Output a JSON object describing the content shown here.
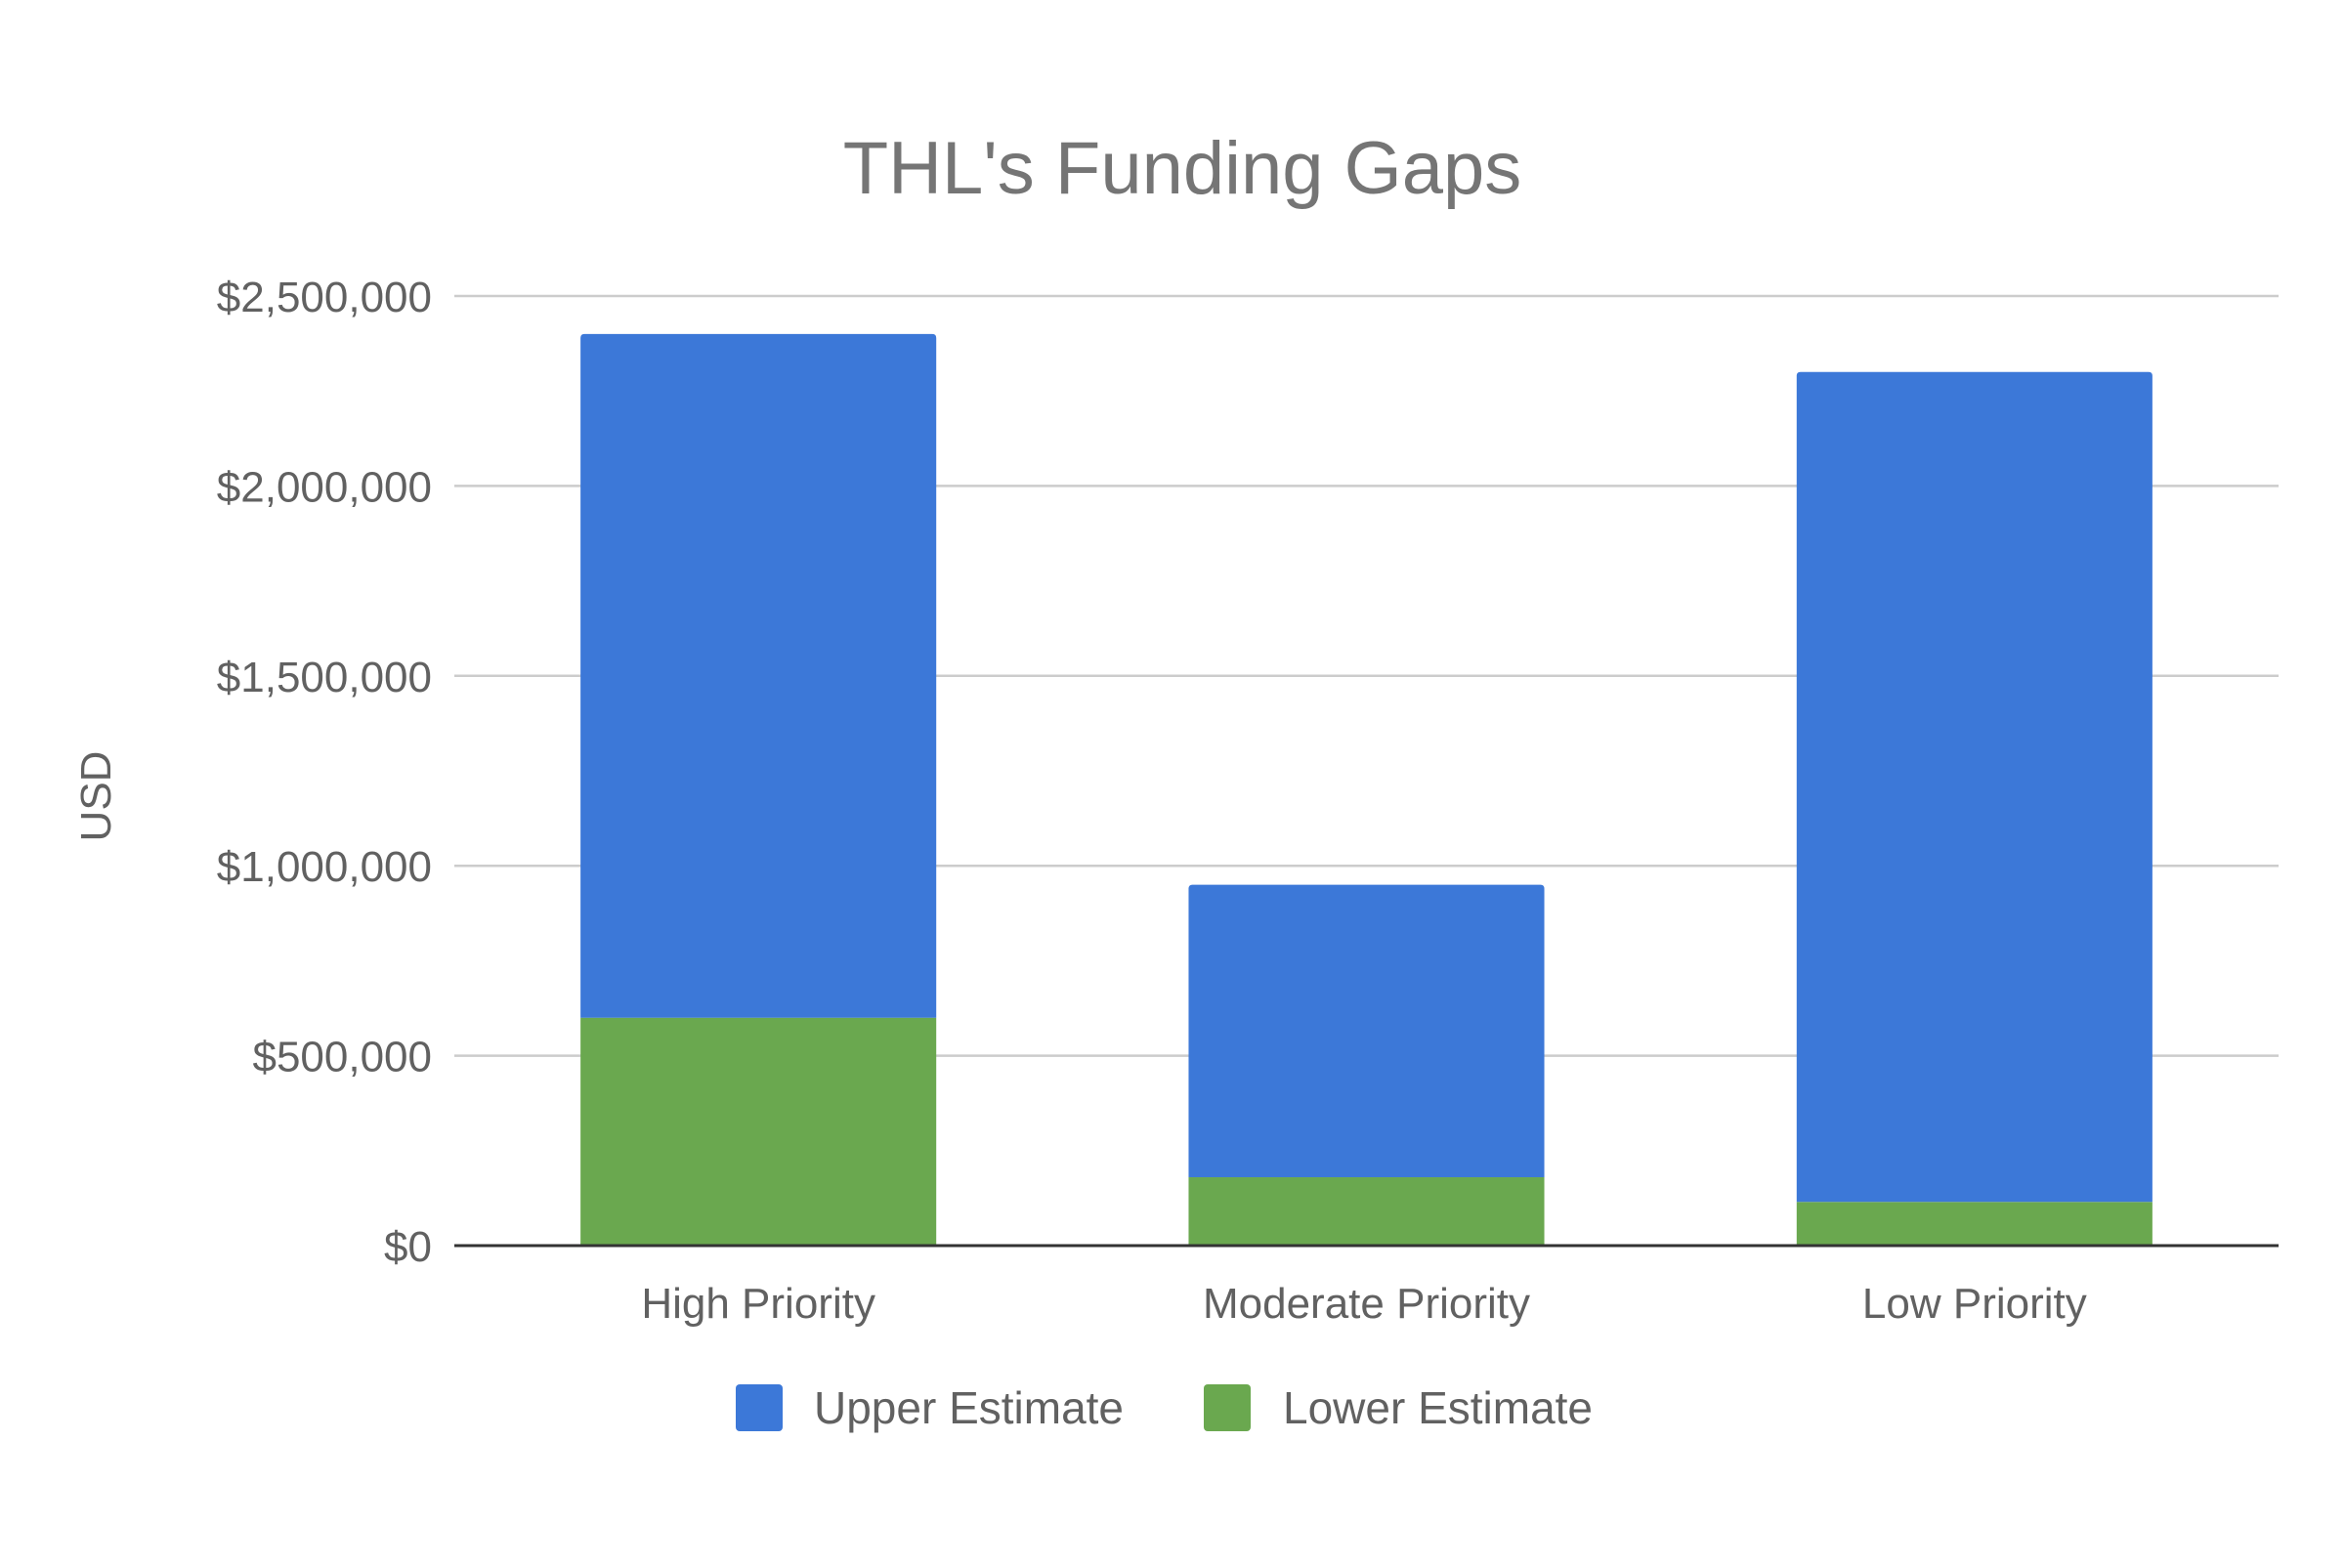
{
  "chart_data": {
    "type": "bar",
    "stacked": true,
    "title": "THL's Funding Gaps",
    "xlabel": "",
    "ylabel": "USD",
    "categories": [
      "High Priority",
      "Moderate Priority",
      "Low Priority"
    ],
    "series": [
      {
        "name": "Lower Estimate",
        "color": "#6aa84f",
        "values": [
          600000,
          180000,
          115000
        ]
      },
      {
        "name": "Upper Estimate",
        "color": "#3c78d8",
        "values": [
          1800000,
          770000,
          2185000
        ]
      }
    ],
    "ylim": [
      0,
      2500000
    ],
    "yticks": [
      0,
      500000,
      1000000,
      1500000,
      2000000,
      2500000
    ],
    "ytick_labels": [
      "$0",
      "$500,000",
      "$1,000,000",
      "$1,500,000",
      "$2,000,000",
      "$2,500,000"
    ],
    "legend": {
      "position": "bottom",
      "items": [
        {
          "label": "Upper Estimate",
          "color": "#3c78d8"
        },
        {
          "label": "Lower Estimate",
          "color": "#6aa84f"
        }
      ]
    },
    "grid": true
  }
}
